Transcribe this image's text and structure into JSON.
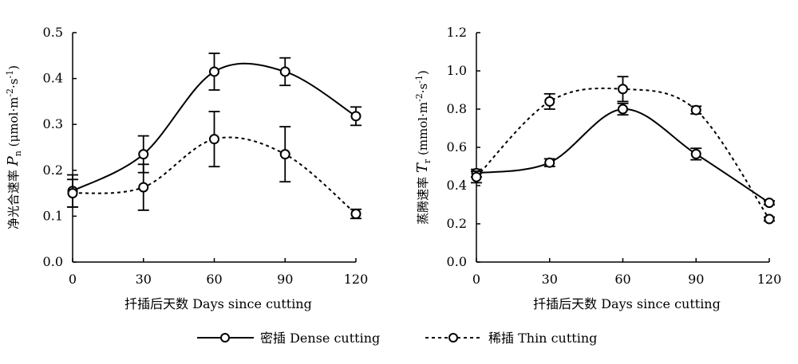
{
  "chart_data": [
    {
      "type": "line",
      "ylabel_cn": "净光合速率",
      "ylabel_sym": "P",
      "ylabel_sub": "n",
      "ylabel_unit": "(μmol·m",
      "ylabel_unit_exp1": "-2",
      "ylabel_unit_mid": "·s",
      "ylabel_unit_exp2": "-1",
      "ylabel_unit_end": ")",
      "xlabel": "扦插后天数 Days since cutting",
      "x": [
        0,
        30,
        60,
        90,
        120
      ],
      "xticks": [
        "0",
        "30",
        "60",
        "90",
        "120"
      ],
      "ylim": [
        0,
        0.5
      ],
      "yticks": [
        "0.0",
        "0.1",
        "0.2",
        "0.3",
        "0.4",
        "0.5"
      ],
      "series": [
        {
          "name": "密插 Dense cutting",
          "style": "solid",
          "values": [
            0.155,
            0.235,
            0.415,
            0.415,
            0.318
          ],
          "errors": [
            0.035,
            0.04,
            0.04,
            0.03,
            0.02
          ]
        },
        {
          "name": "稀插 Thin cutting",
          "style": "dashed",
          "values": [
            0.15,
            0.163,
            0.268,
            0.235,
            0.105
          ],
          "errors": [
            0.03,
            0.05,
            0.06,
            0.06,
            0.01
          ]
        }
      ]
    },
    {
      "type": "line",
      "ylabel_cn": "蒸腾速率",
      "ylabel_sym": "T",
      "ylabel_sub": "r",
      "ylabel_unit": "(mmol·m",
      "ylabel_unit_exp1": "-2",
      "ylabel_unit_mid": "·s",
      "ylabel_unit_exp2": "-1",
      "ylabel_unit_end": ")",
      "xlabel": "扦插后天数 Days since cutting",
      "x": [
        0,
        30,
        60,
        90,
        120
      ],
      "xticks": [
        "0",
        "30",
        "60",
        "90",
        "120"
      ],
      "ylim": [
        0,
        1.2
      ],
      "yticks": [
        "0.0",
        "0.2",
        "0.4",
        "0.6",
        "0.8",
        "1.0",
        "1.2"
      ],
      "series": [
        {
          "name": "密插 Dense cutting",
          "style": "solid",
          "values": [
            0.465,
            0.52,
            0.8,
            0.565,
            0.31
          ],
          "errors": [
            0.02,
            0.02,
            0.03,
            0.03,
            0.01
          ]
        },
        {
          "name": "稀插 Thin cutting",
          "style": "dashed",
          "values": [
            0.445,
            0.84,
            0.905,
            0.795,
            0.225
          ],
          "errors": [
            0.03,
            0.04,
            0.065,
            0.02,
            0.01
          ]
        }
      ]
    }
  ],
  "legend": {
    "dense": "密插 Dense cutting",
    "thin": "稀插 Thin cutting"
  }
}
